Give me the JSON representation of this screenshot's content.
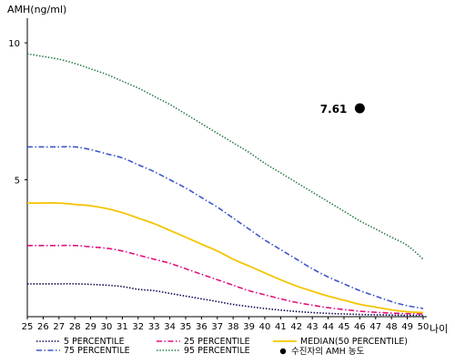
{
  "chart_data": {
    "type": "line",
    "ylabel": "AMH(ng/ml)",
    "xlabel": "나이",
    "x": [
      25,
      26,
      27,
      28,
      29,
      30,
      31,
      32,
      33,
      34,
      35,
      36,
      37,
      38,
      39,
      40,
      41,
      42,
      43,
      44,
      45,
      46,
      47,
      48,
      49,
      50
    ],
    "ylim": [
      0,
      10.9
    ],
    "xlim": [
      25,
      50
    ],
    "y_ticks": [
      5,
      10
    ],
    "grid": false,
    "legend_position": "bottom",
    "series": [
      {
        "name": "5 PERCENTILE",
        "color": "#0a0a50",
        "style": "dotted",
        "values": [
          1.2,
          1.2,
          1.2,
          1.2,
          1.18,
          1.15,
          1.1,
          1.0,
          0.95,
          0.85,
          0.75,
          0.65,
          0.55,
          0.45,
          0.37,
          0.3,
          0.24,
          0.19,
          0.15,
          0.12,
          0.1,
          0.08,
          0.07,
          0.06,
          0.05,
          0.05
        ]
      },
      {
        "name": "25 PERCENTILE",
        "color": "#e0117f",
        "style": "dashdot",
        "values": [
          2.6,
          2.6,
          2.6,
          2.6,
          2.55,
          2.5,
          2.4,
          2.25,
          2.1,
          1.95,
          1.75,
          1.55,
          1.35,
          1.15,
          0.95,
          0.8,
          0.65,
          0.52,
          0.42,
          0.33,
          0.26,
          0.2,
          0.16,
          0.13,
          0.11,
          0.1
        ]
      },
      {
        "name": "MEDIAN(50 PERCENTILE)",
        "color": "#f5c400",
        "style": "solid",
        "values": [
          4.15,
          4.15,
          4.15,
          4.1,
          4.05,
          3.95,
          3.8,
          3.6,
          3.4,
          3.15,
          2.9,
          2.65,
          2.4,
          2.1,
          1.85,
          1.6,
          1.35,
          1.12,
          0.93,
          0.75,
          0.6,
          0.45,
          0.35,
          0.25,
          0.18,
          0.15
        ]
      },
      {
        "name": "75 PERCENTILE",
        "color": "#3d55c8",
        "style": "dashdot",
        "values": [
          6.2,
          6.2,
          6.2,
          6.2,
          6.1,
          5.95,
          5.8,
          5.55,
          5.3,
          5.0,
          4.7,
          4.35,
          4.0,
          3.6,
          3.2,
          2.8,
          2.45,
          2.1,
          1.75,
          1.45,
          1.2,
          0.95,
          0.75,
          0.55,
          0.4,
          0.3
        ]
      },
      {
        "name": "95 PERCENTILE",
        "color": "#2e7d4a",
        "style": "dotted",
        "values": [
          9.6,
          9.5,
          9.4,
          9.25,
          9.05,
          8.85,
          8.6,
          8.35,
          8.05,
          7.75,
          7.4,
          7.05,
          6.7,
          6.35,
          6.0,
          5.6,
          5.25,
          4.9,
          4.55,
          4.2,
          3.85,
          3.5,
          3.2,
          2.9,
          2.6,
          2.1
        ]
      }
    ],
    "point": {
      "name": "수진자의 AMH 농도",
      "x": 46,
      "y": 7.61,
      "label": "7.61",
      "color": "#000000"
    }
  }
}
